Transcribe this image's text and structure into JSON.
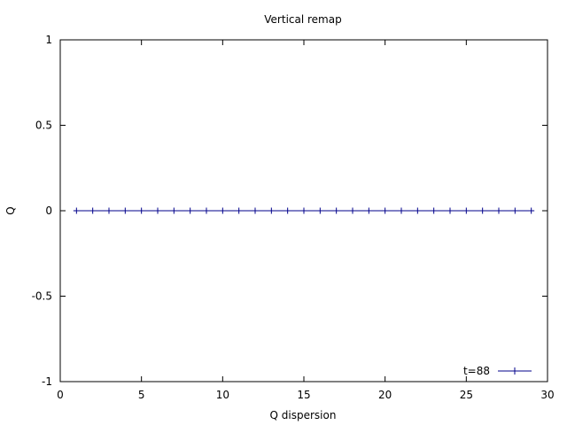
{
  "chart_data": {
    "type": "line",
    "title": "Vertical remap",
    "xlabel": "Q dispersion",
    "ylabel": "Q",
    "xlim": [
      0,
      30
    ],
    "ylim": [
      -1,
      1
    ],
    "x_ticks": [
      "0",
      "5",
      "10",
      "15",
      "20",
      "25",
      "30"
    ],
    "y_ticks": [
      "-1",
      "-0.5",
      "0",
      "0.5",
      "1"
    ],
    "grid": false,
    "legend_position": "bottom-right",
    "series": [
      {
        "name": "t=88",
        "color": "#00008b",
        "marker": "plus",
        "x": [
          1,
          2,
          3,
          4,
          5,
          6,
          7,
          8,
          9,
          10,
          11,
          12,
          13,
          14,
          15,
          16,
          17,
          18,
          19,
          20,
          21,
          22,
          23,
          24,
          25,
          26,
          27,
          28,
          29
        ],
        "y": [
          0,
          0,
          0,
          0,
          0,
          0,
          0,
          0,
          0,
          0,
          0,
          0,
          0,
          0,
          0,
          0,
          0,
          0,
          0,
          0,
          0,
          0,
          0,
          0,
          0,
          0,
          0,
          0,
          0
        ]
      }
    ]
  }
}
